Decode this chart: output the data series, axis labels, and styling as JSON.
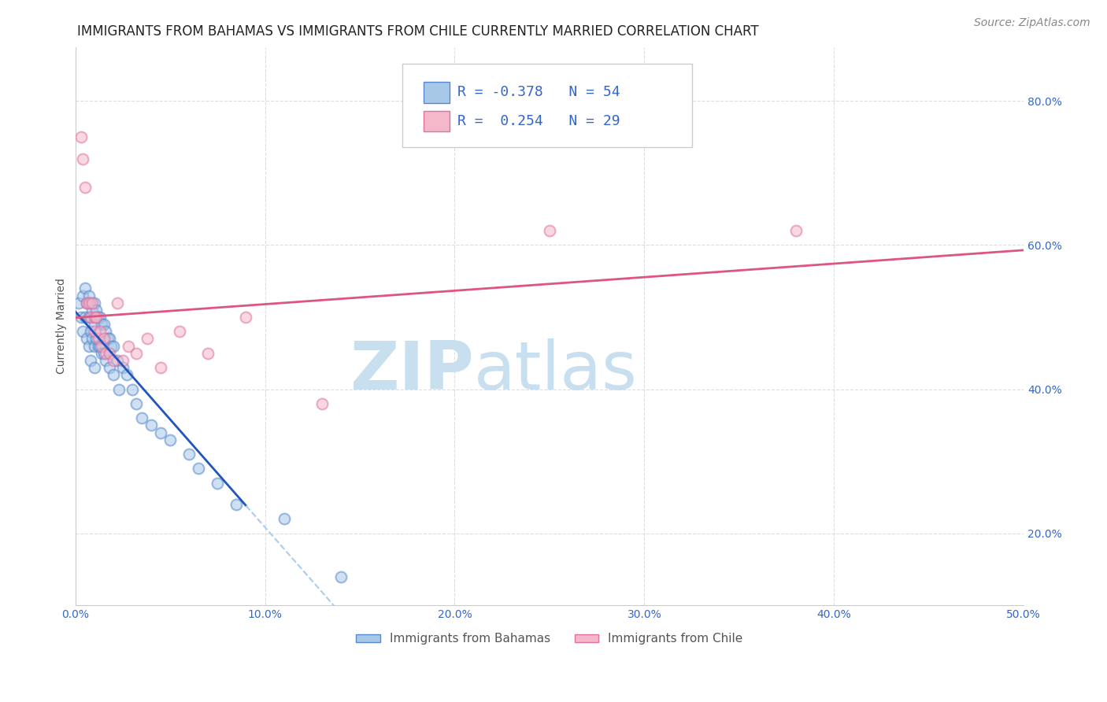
{
  "title": "IMMIGRANTS FROM BAHAMAS VS IMMIGRANTS FROM CHILE CURRENTLY MARRIED CORRELATION CHART",
  "source": "Source: ZipAtlas.com",
  "ylabel": "Currently Married",
  "xlim": [
    0.0,
    0.5
  ],
  "ylim": [
    0.1,
    0.875
  ],
  "xtick_labels": [
    "0.0%",
    "10.0%",
    "20.0%",
    "30.0%",
    "40.0%",
    "50.0%"
  ],
  "xtick_vals": [
    0.0,
    0.1,
    0.2,
    0.3,
    0.4,
    0.5
  ],
  "ytick_labels": [
    "20.0%",
    "40.0%",
    "60.0%",
    "80.0%"
  ],
  "ytick_vals": [
    0.2,
    0.4,
    0.6,
    0.8
  ],
  "bahamas_color": "#a8c8e8",
  "chile_color": "#f5b8cb",
  "bahamas_edge": "#5588cc",
  "chile_edge": "#e070a0",
  "trend_bahamas_color": "#2255bb",
  "trend_chile_color": "#dd5580",
  "trend_dashed_color": "#aaccee",
  "bahamas_x": [
    0.002,
    0.003,
    0.004,
    0.004,
    0.005,
    0.005,
    0.006,
    0.006,
    0.007,
    0.007,
    0.007,
    0.008,
    0.008,
    0.008,
    0.009,
    0.009,
    0.01,
    0.01,
    0.01,
    0.01,
    0.011,
    0.011,
    0.012,
    0.012,
    0.013,
    0.013,
    0.014,
    0.014,
    0.015,
    0.015,
    0.016,
    0.016,
    0.017,
    0.018,
    0.018,
    0.019,
    0.02,
    0.02,
    0.022,
    0.023,
    0.025,
    0.027,
    0.03,
    0.032,
    0.035,
    0.04,
    0.045,
    0.05,
    0.06,
    0.065,
    0.075,
    0.085,
    0.11,
    0.14
  ],
  "bahamas_y": [
    0.52,
    0.5,
    0.53,
    0.48,
    0.54,
    0.5,
    0.52,
    0.47,
    0.53,
    0.5,
    0.46,
    0.52,
    0.48,
    0.44,
    0.51,
    0.47,
    0.52,
    0.49,
    0.46,
    0.43,
    0.51,
    0.47,
    0.5,
    0.46,
    0.5,
    0.46,
    0.49,
    0.45,
    0.49,
    0.45,
    0.48,
    0.44,
    0.47,
    0.47,
    0.43,
    0.46,
    0.46,
    0.42,
    0.44,
    0.4,
    0.43,
    0.42,
    0.4,
    0.38,
    0.36,
    0.35,
    0.34,
    0.33,
    0.31,
    0.29,
    0.27,
    0.24,
    0.22,
    0.14
  ],
  "chile_x": [
    0.003,
    0.004,
    0.005,
    0.006,
    0.007,
    0.008,
    0.009,
    0.01,
    0.01,
    0.011,
    0.012,
    0.013,
    0.014,
    0.015,
    0.016,
    0.018,
    0.02,
    0.022,
    0.025,
    0.028,
    0.032,
    0.038,
    0.045,
    0.055,
    0.07,
    0.09,
    0.13,
    0.25,
    0.38
  ],
  "chile_y": [
    0.75,
    0.72,
    0.68,
    0.52,
    0.52,
    0.5,
    0.52,
    0.5,
    0.48,
    0.5,
    0.47,
    0.48,
    0.46,
    0.47,
    0.45,
    0.45,
    0.44,
    0.52,
    0.44,
    0.46,
    0.45,
    0.47,
    0.43,
    0.48,
    0.45,
    0.5,
    0.38,
    0.62,
    0.62
  ],
  "marker_size": 100,
  "alpha": 0.55,
  "title_fontsize": 12,
  "axis_label_fontsize": 10,
  "tick_fontsize": 10,
  "legend_fontsize": 13,
  "source_fontsize": 10,
  "watermark_zip": "ZIP",
  "watermark_atlas": "atlas",
  "watermark_color": "#c8dff0",
  "watermark_fontsize": 62,
  "grid_color": "#dddddd",
  "grid_style": "--"
}
